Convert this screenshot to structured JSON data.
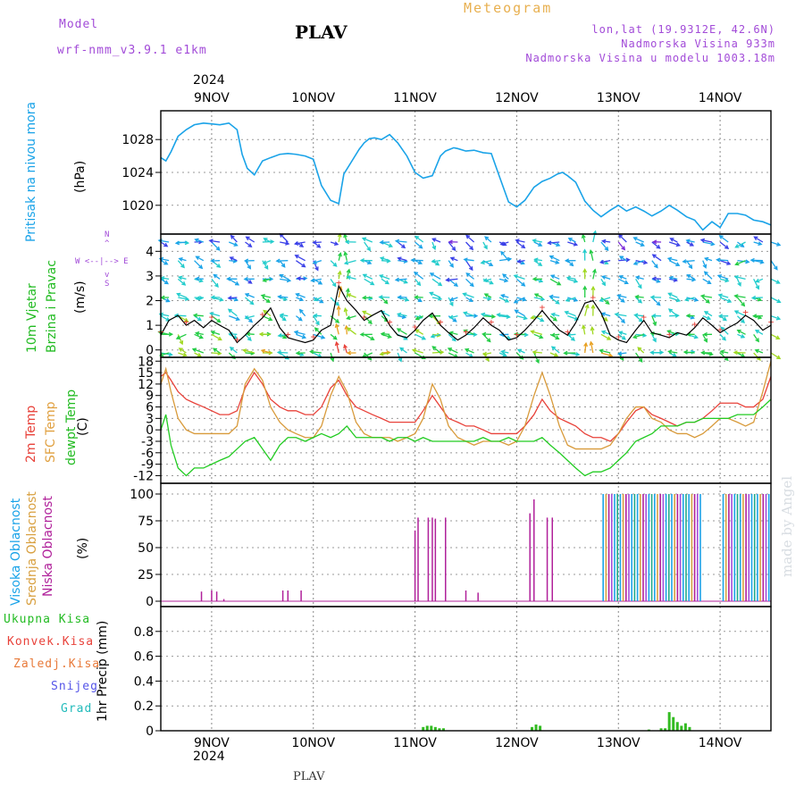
{
  "header": {
    "model_label": "Model",
    "model_name": "wrf-nmm_v3.9.1 e1km",
    "station": "PLAV",
    "meteogram": "Meteogram",
    "lonlat": "lon,lat (19.9312E, 42.6N)",
    "elevation": "Nadmorska Visina 933m",
    "model_elevation": "Nadmorska Visina u modelu 1003.18m",
    "year_top": "2024",
    "year_bottom": "2024",
    "footer_station": "PLAV",
    "credit": "made by Angel"
  },
  "colors": {
    "pressure": "#1aa3e8",
    "temp2m": "#e8423a",
    "sfc_temp": "#d89a3a",
    "dewpt": "#22cc22",
    "purple": "#a24bd8",
    "high_cloud": "#1aa3e8",
    "mid_cloud": "#d8a040",
    "low_cloud": "#b0209a",
    "total_precip": "#33bb22",
    "conv_precip": "#e8423a",
    "grid": "#999999"
  },
  "panel_labels": {
    "pressure": [
      "Pritisak na nivou mora",
      "(hPa)"
    ],
    "wind": [
      "10m Vjetar",
      "Brzina i Pravac",
      "(m/s)"
    ],
    "compass": [
      "N",
      "^",
      "W <--|--> E",
      "v",
      "S"
    ],
    "temp": [
      "2m Temp",
      "SFC Temp",
      "dewpt Temp",
      "(C)"
    ],
    "cloud": [
      "Visoka Oblacnost",
      "Srednja Oblacnost",
      "Niska Oblacnost",
      "(%)"
    ],
    "precip": [
      "Ukupna Kisa",
      "Konvek.Kisa",
      "Zaledj.Kisa",
      "Snijeg",
      "Grad",
      "1hr Precip (mm)"
    ]
  },
  "chart_data": [
    {
      "type": "line",
      "title": "Pritisak na nivou mora",
      "ylabel": "(hPa)",
      "ylim": [
        1016.5,
        1031.5
      ],
      "yticks": [
        1020,
        1024,
        1028
      ],
      "x_day_labels": [
        "9NOV",
        "10NOV",
        "11NOV",
        "12NOV",
        "13NOV",
        "14NOV"
      ],
      "x_range_days": [
        -0.5,
        5.5
      ],
      "x": [
        -0.5,
        -0.45,
        -0.4,
        -0.33,
        -0.25,
        -0.17,
        -0.08,
        0,
        0.08,
        0.17,
        0.25,
        0.3,
        0.35,
        0.42,
        0.5,
        0.58,
        0.67,
        0.75,
        0.83,
        0.92,
        1.0,
        1.08,
        1.17,
        1.25,
        1.3,
        1.38,
        1.45,
        1.5,
        1.55,
        1.6,
        1.67,
        1.75,
        1.83,
        1.92,
        2.0,
        2.08,
        2.17,
        2.25,
        2.3,
        2.38,
        2.42,
        2.5,
        2.58,
        2.67,
        2.75,
        2.83,
        2.92,
        3.0,
        3.08,
        3.17,
        3.25,
        3.33,
        3.4,
        3.45,
        3.5,
        3.58,
        3.67,
        3.75,
        3.83,
        3.92,
        4.0,
        4.08,
        4.17,
        4.25,
        4.33,
        4.42,
        4.5,
        4.58,
        4.67,
        4.75,
        4.83,
        4.92,
        5.0,
        5.08,
        5.17,
        5.25,
        5.33,
        5.42,
        5.5
      ],
      "values": [
        1025.8,
        1025.4,
        1026.5,
        1028.4,
        1029.2,
        1029.8,
        1030.0,
        1029.9,
        1029.8,
        1030.0,
        1029.2,
        1026.2,
        1024.5,
        1023.7,
        1025.4,
        1025.8,
        1026.2,
        1026.3,
        1026.2,
        1026.0,
        1025.6,
        1022.4,
        1020.6,
        1020.2,
        1023.8,
        1025.4,
        1026.8,
        1027.6,
        1028.1,
        1028.2,
        1028.0,
        1028.6,
        1027.6,
        1026.0,
        1024.0,
        1023.3,
        1023.6,
        1026.0,
        1026.6,
        1027.0,
        1026.9,
        1026.6,
        1026.7,
        1026.4,
        1026.3,
        1023.5,
        1020.4,
        1019.8,
        1020.6,
        1022.2,
        1022.9,
        1023.3,
        1023.8,
        1024.0,
        1023.6,
        1022.8,
        1020.5,
        1019.4,
        1018.6,
        1019.4,
        1020.0,
        1019.3,
        1019.8,
        1019.3,
        1018.7,
        1019.3,
        1020.0,
        1019.4,
        1018.6,
        1018.2,
        1017.0,
        1018.0,
        1017.3,
        1019.0,
        1019.0,
        1018.8,
        1018.2,
        1018.0,
        1017.6
      ]
    },
    {
      "type": "line",
      "title": "10m Vjetar Brzina i Pravac",
      "ylabel": "(m/s)",
      "ylim": [
        -0.3,
        4.7
      ],
      "yticks": [
        0,
        1,
        2,
        3,
        4
      ],
      "x": [
        -0.5,
        -0.42,
        -0.33,
        -0.25,
        -0.17,
        -0.08,
        0,
        0.08,
        0.17,
        0.25,
        0.33,
        0.42,
        0.5,
        0.58,
        0.67,
        0.75,
        0.83,
        0.92,
        1.0,
        1.08,
        1.17,
        1.25,
        1.33,
        1.42,
        1.5,
        1.58,
        1.67,
        1.75,
        1.83,
        1.92,
        2.0,
        2.08,
        2.17,
        2.25,
        2.33,
        2.42,
        2.5,
        2.58,
        2.67,
        2.75,
        2.83,
        2.92,
        3.0,
        3.08,
        3.17,
        3.25,
        3.33,
        3.42,
        3.5,
        3.58,
        3.67,
        3.75,
        3.83,
        3.92,
        4.0,
        4.08,
        4.17,
        4.25,
        4.33,
        4.42,
        4.5,
        4.58,
        4.67,
        4.75,
        4.83,
        4.92,
        5.0,
        5.08,
        5.17,
        5.25,
        5.33,
        5.42,
        5.5
      ],
      "speed": [
        0.6,
        1.2,
        1.4,
        1.0,
        1.2,
        0.9,
        1.2,
        1.0,
        0.8,
        0.3,
        0.6,
        1.0,
        1.3,
        1.7,
        0.9,
        0.5,
        0.4,
        0.3,
        0.4,
        0.8,
        1.0,
        2.6,
        2.0,
        1.6,
        1.2,
        1.4,
        1.6,
        1.0,
        0.6,
        0.5,
        0.8,
        1.2,
        1.5,
        1.0,
        0.7,
        0.4,
        0.6,
        0.9,
        1.3,
        1.0,
        0.8,
        0.4,
        0.5,
        0.8,
        1.2,
        1.6,
        1.2,
        0.8,
        0.6,
        1.1,
        1.9,
        2.0,
        1.5,
        0.6,
        0.4,
        0.3,
        0.8,
        1.2,
        0.7,
        0.6,
        0.5,
        0.7,
        0.6,
        0.9,
        1.3,
        1.0,
        0.7,
        0.9,
        1.1,
        1.4,
        1.2,
        0.8,
        1.0
      ]
    },
    {
      "type": "line",
      "title": "2m Temp / SFC Temp / dewpt Temp",
      "ylabel": "(C)",
      "ylim": [
        -14,
        19
      ],
      "yticks": [
        -12,
        -9,
        -6,
        -3,
        0,
        3,
        6,
        9,
        12,
        15,
        18
      ],
      "x": [
        -0.5,
        -0.45,
        -0.4,
        -0.33,
        -0.25,
        -0.17,
        -0.08,
        0,
        0.08,
        0.17,
        0.25,
        0.33,
        0.42,
        0.5,
        0.58,
        0.67,
        0.75,
        0.83,
        0.92,
        1.0,
        1.08,
        1.17,
        1.25,
        1.33,
        1.42,
        1.5,
        1.58,
        1.67,
        1.75,
        1.83,
        1.92,
        2.0,
        2.08,
        2.17,
        2.25,
        2.33,
        2.42,
        2.5,
        2.58,
        2.67,
        2.75,
        2.83,
        2.92,
        3.0,
        3.08,
        3.17,
        3.25,
        3.33,
        3.42,
        3.5,
        3.58,
        3.67,
        3.75,
        3.83,
        3.92,
        4.0,
        4.08,
        4.17,
        4.25,
        4.33,
        4.42,
        4.5,
        4.58,
        4.67,
        4.75,
        4.83,
        4.92,
        5.0,
        5.08,
        5.17,
        5.25,
        5.33,
        5.42,
        5.5
      ],
      "series": [
        {
          "name": "2m Temp",
          "values": [
            14,
            15,
            13,
            10,
            8,
            7,
            6,
            5,
            4,
            4,
            5,
            11,
            15,
            12,
            8,
            6,
            5,
            5,
            4,
            4,
            6,
            11,
            13,
            9,
            6,
            5,
            4,
            3,
            2,
            2,
            2,
            2,
            5,
            9,
            6,
            3,
            2,
            1,
            1,
            0,
            -1,
            -1,
            -1,
            -1,
            1,
            4,
            8,
            5,
            3,
            2,
            1,
            -1,
            -2,
            -2,
            -3,
            -1,
            2,
            5,
            6,
            4,
            3,
            2,
            1,
            2,
            2,
            3,
            5,
            7,
            7,
            7,
            6,
            6,
            8,
            14
          ]
        },
        {
          "name": "SFC Temp",
          "values": [
            12,
            16,
            10,
            3,
            0,
            -1,
            -1,
            -1,
            -1,
            -1,
            1,
            12,
            16,
            13,
            6,
            2,
            0,
            -1,
            -2,
            -2,
            1,
            9,
            14,
            10,
            2,
            -1,
            -2,
            -2,
            -2,
            -3,
            -2,
            -1,
            3,
            12,
            8,
            1,
            -2,
            -3,
            -4,
            -3,
            -3,
            -3,
            -4,
            -3,
            1,
            9,
            15,
            9,
            1,
            -4,
            -5,
            -5,
            -5,
            -5,
            -4,
            -1,
            3,
            6,
            6,
            3,
            2,
            0,
            -1,
            -1,
            -2,
            -1,
            1,
            3,
            3,
            2,
            1,
            2,
            10,
            18
          ]
        },
        {
          "name": "dewpt Temp",
          "values": [
            0,
            4,
            -4,
            -10,
            -12,
            -10,
            -10,
            -9,
            -8,
            -7,
            -5,
            -3,
            -2,
            -5,
            -8,
            -4,
            -2,
            -2,
            -3,
            -2,
            -1,
            -2,
            -1,
            1,
            -2,
            -2,
            -2,
            -2,
            -3,
            -2,
            -2,
            -3,
            -2,
            -3,
            -3,
            -3,
            -3,
            -3,
            -3,
            -2,
            -3,
            -3,
            -2,
            -3,
            -3,
            -3,
            -2,
            -4,
            -6,
            -8,
            -10,
            -12,
            -11,
            -11,
            -10,
            -8,
            -6,
            -3,
            -2,
            -1,
            1,
            1,
            1,
            2,
            2,
            3,
            3,
            3,
            3,
            4,
            4,
            4,
            6,
            8
          ]
        }
      ]
    },
    {
      "type": "bar",
      "title": "Visoka / Srednja / Niska Oblacnost",
      "ylabel": "(%)",
      "ylim": [
        -5,
        110
      ],
      "yticks": [
        0,
        25,
        50,
        75,
        100
      ],
      "low_cloud_spikes": [
        [
          -0.1,
          9
        ],
        [
          0.0,
          10
        ],
        [
          0.05,
          9
        ],
        [
          0.12,
          2
        ],
        [
          0.7,
          10
        ],
        [
          0.75,
          10
        ],
        [
          0.88,
          10
        ],
        [
          2.0,
          66
        ],
        [
          2.03,
          78
        ],
        [
          2.13,
          78
        ],
        [
          2.17,
          78
        ],
        [
          2.2,
          77
        ],
        [
          2.3,
          78
        ],
        [
          2.5,
          10
        ],
        [
          2.62,
          8
        ],
        [
          3.13,
          82
        ],
        [
          3.17,
          95
        ],
        [
          3.3,
          78
        ],
        [
          3.35,
          78
        ]
      ],
      "overcast_blocks": [
        [
          3.85,
          4.82
        ],
        [
          5.03,
          5.5
        ]
      ],
      "overcast_value": 100
    },
    {
      "type": "bar",
      "title": "1hr Precip",
      "ylabel": "1hr Precip (mm)",
      "ylim": [
        0,
        1.0
      ],
      "yticks": [
        0,
        0.2,
        0.4,
        0.6,
        0.8
      ],
      "x": [
        2.08,
        2.12,
        2.16,
        2.2,
        2.24,
        2.28,
        3.15,
        3.19,
        3.23,
        4.3,
        4.42,
        4.46,
        4.5,
        4.54,
        4.58,
        4.62,
        4.66,
        4.7
      ],
      "values": [
        0.03,
        0.04,
        0.04,
        0.03,
        0.02,
        0.02,
        0.03,
        0.05,
        0.04,
        0.01,
        0.02,
        0.02,
        0.15,
        0.11,
        0.07,
        0.04,
        0.06,
        0.03
      ]
    }
  ]
}
